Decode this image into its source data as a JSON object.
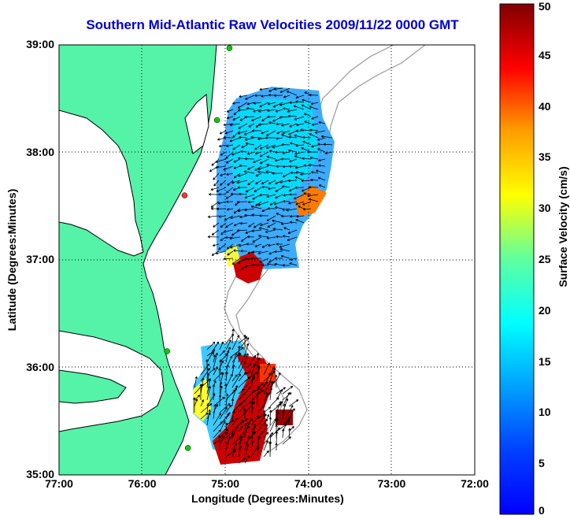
{
  "title": "Southern Mid-Atlantic Raw Velocities 2009/11/22 0000 GMT",
  "x_axis": {
    "label": "Longitude (Degrees:Minutes)",
    "ticks": [
      "77:00",
      "76:00",
      "75:00",
      "74:00",
      "73:00",
      "72:00"
    ]
  },
  "y_axis": {
    "label": "Latitude (Degrees:Minutes)",
    "ticks": [
      "39:00",
      "38:00",
      "37:00",
      "36:00",
      "35:00"
    ]
  },
  "colorbar": {
    "label": "Surface Velocity (cm/s)",
    "ticks": [
      "50",
      "45",
      "40",
      "35",
      "30",
      "25",
      "20",
      "15",
      "10",
      "5",
      "0"
    ],
    "range": [
      0,
      50
    ],
    "colormap": "jet"
  },
  "map": {
    "lon_range": [
      -77,
      -72
    ],
    "lat_range": [
      35,
      39
    ],
    "land_color": "#55f3a8",
    "grid": "dotted",
    "station_markers": [
      {
        "lon": -74.95,
        "lat": 38.97,
        "color": "#00cc00"
      },
      {
        "lon": -75.1,
        "lat": 38.3,
        "color": "#00cc00"
      },
      {
        "lon": -75.49,
        "lat": 37.6,
        "color": "#ff3333"
      },
      {
        "lon": -75.7,
        "lat": 36.15,
        "color": "#00cc00"
      },
      {
        "lon": -75.45,
        "lat": 35.25,
        "color": "#00cc00"
      }
    ]
  }
}
